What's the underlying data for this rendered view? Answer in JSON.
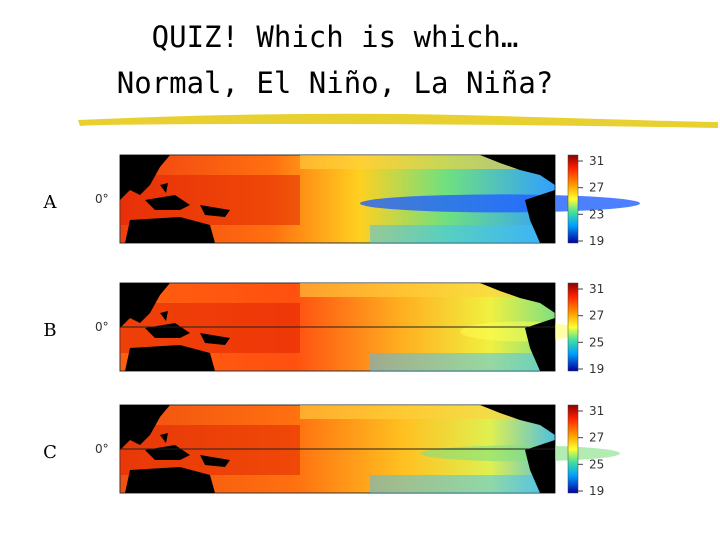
{
  "title": {
    "line1": "QUIZ! Which is which…",
    "line2": "Normal, El Niño, La Niña?"
  },
  "panels": [
    {
      "label": "A",
      "latitude_label": "0°",
      "colorbar_ticks": [
        "31",
        "27",
        "23",
        "19"
      ]
    },
    {
      "label": "B",
      "latitude_label": "0°",
      "colorbar_ticks": [
        "31",
        "27",
        "25",
        "19"
      ]
    },
    {
      "label": "C",
      "latitude_label": "0°",
      "colorbar_ticks": [
        "31",
        "27",
        "25",
        "19"
      ]
    }
  ]
}
